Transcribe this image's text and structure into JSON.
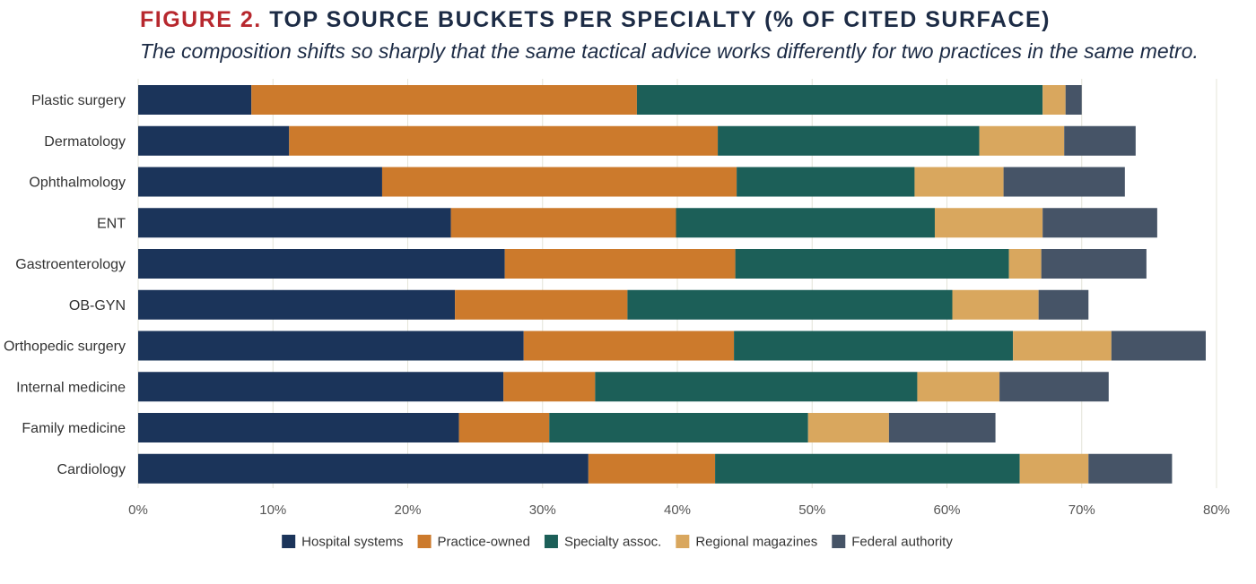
{
  "header": {
    "figure_label": "FIGURE 2.",
    "title": "TOP SOURCE BUCKETS PER SPECIALTY (% OF CITED SURFACE)",
    "subtitle": "The composition shifts so sharply that the same tactical advice works differently for two practices in the same metro."
  },
  "colors": {
    "figure_label": "#b7282e",
    "title": "#1c2b45",
    "grid": "#e4e4d8"
  },
  "chart_data": {
    "type": "bar",
    "orientation": "horizontal",
    "stacked": true,
    "title": "TOP SOURCE BUCKETS PER SPECIALTY (% OF CITED SURFACE)",
    "xlabel": "",
    "ylabel": "",
    "xlim": [
      0,
      80
    ],
    "xticks": [
      0,
      10,
      20,
      30,
      40,
      50,
      60,
      70,
      80
    ],
    "tick_suffix": "%",
    "grid": true,
    "legend_position": "bottom",
    "categories": [
      "Plastic surgery",
      "Dermatology",
      "Ophthalmology",
      "ENT",
      "Gastroenterology",
      "OB-GYN",
      "Orthopedic surgery",
      "Internal medicine",
      "Family medicine",
      "Cardiology"
    ],
    "series": [
      {
        "name": "Hospital systems",
        "color": "#1b345a",
        "values": [
          8.4,
          11.2,
          18.1,
          23.2,
          27.2,
          23.5,
          28.6,
          27.1,
          23.8,
          33.4
        ]
      },
      {
        "name": "Practice-owned",
        "color": "#cc7a2c",
        "values": [
          28.6,
          31.8,
          26.3,
          16.7,
          17.1,
          12.8,
          15.6,
          6.8,
          6.7,
          9.4
        ]
      },
      {
        "name": "Specialty assoc.",
        "color": "#1c5f58",
        "values": [
          30.1,
          19.4,
          13.2,
          19.2,
          20.3,
          24.1,
          20.7,
          23.9,
          19.2,
          22.6
        ]
      },
      {
        "name": "Regional magazines",
        "color": "#d9a75e",
        "values": [
          1.7,
          6.3,
          6.6,
          8.0,
          2.4,
          6.4,
          7.3,
          6.1,
          6.0,
          5.1
        ]
      },
      {
        "name": "Federal authority",
        "color": "#465467",
        "values": [
          1.2,
          5.3,
          9.0,
          8.5,
          7.8,
          3.7,
          7.0,
          8.1,
          7.9,
          6.2
        ]
      }
    ]
  }
}
